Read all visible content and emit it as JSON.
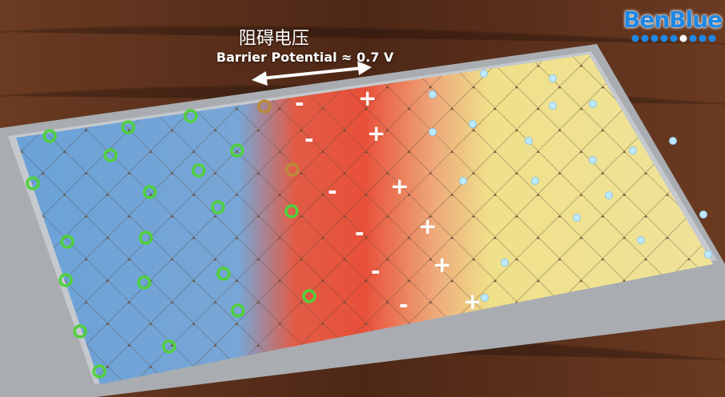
{
  "overlay": {
    "title_cn": "阻碍电压",
    "title_en": "Barrier Potential ≈ 0.7 V"
  },
  "logo": {
    "text": "BenBlue"
  },
  "colors": {
    "wood": "#5a2e1a",
    "p_region": "#6fa3d6",
    "depletion": "#e8503a",
    "n_region": "#efe08a",
    "hole_ring": "#4fd13b",
    "electron": "#bfe9ff"
  }
}
